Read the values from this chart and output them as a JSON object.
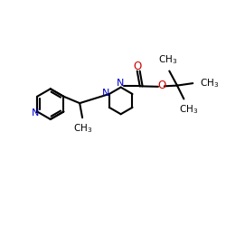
{
  "background_color": "#ffffff",
  "bond_color": "#000000",
  "nitrogen_color": "#0000cc",
  "oxygen_color": "#cc0000",
  "carbon_color": "#000000",
  "figsize": [
    2.5,
    2.5
  ],
  "dpi": 100,
  "xlim": [
    0,
    10
  ],
  "ylim": [
    0,
    10
  ],
  "lw": 1.5,
  "fs": 7.5
}
